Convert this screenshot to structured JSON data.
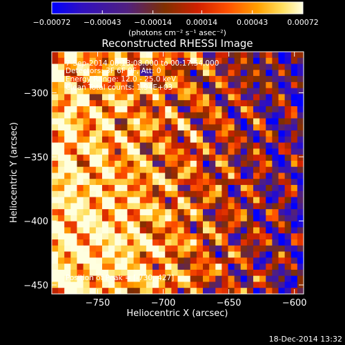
{
  "chart_data": {
    "type": "heatmap",
    "title": "Reconstructed RHESSI Image",
    "xlabel": "Heliocentric X (arcsec)",
    "ylabel": "Heliocentric Y (arcsec)",
    "xlim": [
      -785,
      -593
    ],
    "ylim": [
      -457,
      -268
    ],
    "x_ticks": [
      -750,
      -700,
      -650,
      -600
    ],
    "y_ticks": [
      -450,
      -400,
      -350,
      -300
    ],
    "x_tick_labels": [
      "−750",
      "−700",
      "−650",
      "−600"
    ],
    "y_tick_labels": [
      "−450",
      "−400",
      "−350",
      "−300"
    ],
    "colorbar": {
      "range": [
        -0.00072,
        0.00072
      ],
      "ticks": [
        -0.00072,
        -0.00043,
        -0.00014,
        0.00014,
        0.00043,
        0.00072
      ],
      "tick_labels": [
        "−0.00072",
        "−0.00043",
        "−0.00014",
        "0.00014",
        "0.00043",
        "0.00072"
      ],
      "unit_label": "(photons cm⁻² s⁻¹ asec⁻²)",
      "colormap_stops": [
        "#0000ff",
        "#3010c0",
        "#502080",
        "#803000",
        "#d02000",
        "#ff5000",
        "#ffa000",
        "#ffe060",
        "#ffffe0"
      ]
    },
    "annotations": [
      "7-Sep-2014 00:13:08.000 to 00:17:54.000",
      "Detectors: 3F 6F 9F, Att: 0",
      "Energy Range: 12.0 - 25.0 keV",
      "Clean     Total counts: 1.94E+03"
    ],
    "peak_label": "Position of Peak = [-730,-427]",
    "peak_position": [
      -730,
      -427
    ]
  },
  "footer": {
    "timestamp": "18-Dec-2014 13:32"
  }
}
